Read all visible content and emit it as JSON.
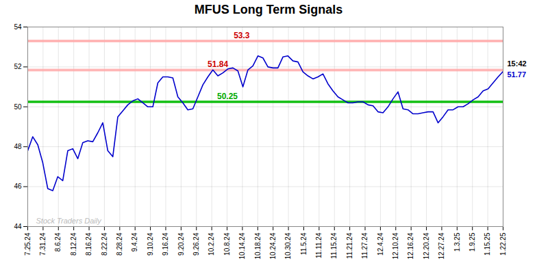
{
  "chart_data": {
    "type": "line",
    "title": "MFUS Long Term Signals",
    "color": "#0000cc",
    "xlim": [
      0,
      31
    ],
    "xticks": [
      {
        "value": 0,
        "label": "7.25.24"
      },
      {
        "value": 1,
        "label": "7.31.24"
      },
      {
        "value": 2,
        "label": "8.6.24"
      },
      {
        "value": 3,
        "label": "8.12.24"
      },
      {
        "value": 4,
        "label": "8.16.24"
      },
      {
        "value": 5,
        "label": "8.22.24"
      },
      {
        "value": 6,
        "label": "8.28.24"
      },
      {
        "value": 7,
        "label": "9.4.24"
      },
      {
        "value": 8,
        "label": "9.10.24"
      },
      {
        "value": 9,
        "label": "9.16.24"
      },
      {
        "value": 10,
        "label": "9.20.24"
      },
      {
        "value": 11,
        "label": "9.26.24"
      },
      {
        "value": 12,
        "label": "10.2.24"
      },
      {
        "value": 13,
        "label": "10.8.24"
      },
      {
        "value": 14,
        "label": "10.14.24"
      },
      {
        "value": 15,
        "label": "10.18.24"
      },
      {
        "value": 16,
        "label": "10.24.24"
      },
      {
        "value": 17,
        "label": "10.30.24"
      },
      {
        "value": 18,
        "label": "11.5.24"
      },
      {
        "value": 19,
        "label": "11.11.24"
      },
      {
        "value": 20,
        "label": "11.15.24"
      },
      {
        "value": 21,
        "label": "11.21.24"
      },
      {
        "value": 22,
        "label": "11.27.24"
      },
      {
        "value": 23,
        "label": "12.4.24"
      },
      {
        "value": 24,
        "label": "12.10.24"
      },
      {
        "value": 25,
        "label": "12.16.24"
      },
      {
        "value": 26,
        "label": "12.20.24"
      },
      {
        "value": 27,
        "label": "12.27.24"
      },
      {
        "value": 28,
        "label": "1.3.25"
      },
      {
        "value": 29,
        "label": "1.9.25"
      },
      {
        "value": 30,
        "label": "1.15.25"
      },
      {
        "value": 31,
        "label": "1.22.25"
      }
    ],
    "ylim": [
      44,
      54
    ],
    "yticks": [
      44,
      46,
      48,
      50,
      52,
      54
    ],
    "grid": true,
    "values": [
      47.8,
      48.5,
      48.1,
      47.2,
      45.9,
      45.8,
      46.5,
      46.3,
      47.8,
      47.9,
      47.4,
      48.2,
      48.3,
      48.25,
      48.7,
      49.2,
      47.8,
      47.5,
      49.5,
      49.8,
      50.1,
      50.3,
      50.4,
      50.2,
      50.0,
      50.0,
      51.2,
      51.5,
      51.5,
      51.45,
      50.5,
      50.2,
      49.85,
      49.9,
      50.5,
      51.1,
      51.5,
      51.85,
      51.55,
      51.7,
      51.9,
      51.95,
      51.8,
      51.0,
      51.85,
      52.05,
      52.55,
      52.45,
      52.0,
      51.95,
      51.95,
      52.5,
      52.55,
      52.3,
      52.25,
      51.75,
      51.55,
      51.4,
      51.5,
      51.65,
      51.15,
      50.8,
      50.5,
      50.35,
      50.2,
      50.2,
      50.25,
      50.25,
      50.1,
      50.05,
      49.75,
      49.7,
      50.0,
      50.4,
      50.75,
      49.9,
      49.85,
      49.65,
      49.65,
      49.7,
      49.75,
      49.75,
      49.2,
      49.5,
      49.85,
      49.85,
      50.0,
      50.0,
      50.15,
      50.35,
      50.5,
      50.8,
      50.9,
      51.2,
      51.5,
      51.77
    ],
    "reference_lines": [
      {
        "y": 53.3,
        "color": "#ffaaaa",
        "label": "53.3",
        "label_color": "#cc0000"
      },
      {
        "y": 51.84,
        "color": "#ffaaaa",
        "label": "51.84",
        "label_color": "#cc0000"
      },
      {
        "y": 50.25,
        "color": "#00bb00",
        "label": "50.25",
        "label_color": "#00aa00"
      }
    ],
    "end_labels": [
      {
        "text": "15:42",
        "color": "#000000"
      },
      {
        "text": "51.77",
        "color": "#0000cc"
      }
    ],
    "watermark": {
      "text": "Stock Traders Daily",
      "color": "#bbbbbb"
    }
  }
}
